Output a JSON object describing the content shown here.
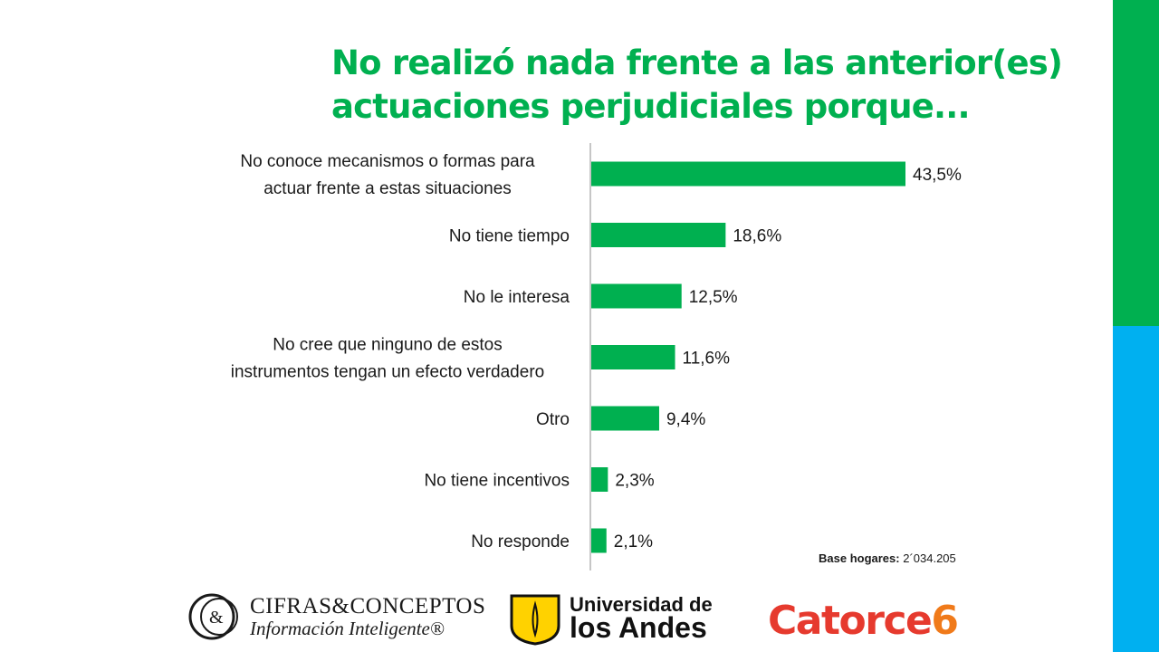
{
  "title_line1": "No realizó nada frente a las anterior(es)",
  "title_line2": "actuaciones perjudiciales porque...",
  "colors": {
    "title": "#00b050",
    "bar": "#00b050",
    "side_top": "#00b050",
    "side_bottom": "#00b0f0"
  },
  "base_note": {
    "label": "Base hogares:",
    "value": "2´034.205"
  },
  "chart_data": {
    "type": "bar",
    "orientation": "horizontal",
    "categories": [
      [
        "No conoce mecanismos o formas para",
        "actuar frente a estas situaciones"
      ],
      [
        "No tiene tiempo"
      ],
      [
        "No le interesa"
      ],
      [
        "No cree que ninguno de estos",
        "instrumentos tengan un efecto verdadero"
      ],
      [
        "Otro"
      ],
      [
        "No tiene incentivos"
      ],
      [
        "No responde"
      ]
    ],
    "values": [
      43.5,
      18.6,
      12.5,
      11.6,
      9.4,
      2.3,
      2.1
    ],
    "value_labels": [
      "43,5%",
      "18,6%",
      "12,5%",
      "11,6%",
      "9,4%",
      "2,3%",
      "2,1%"
    ],
    "xlim": [
      0,
      100
    ],
    "grid": false,
    "legend": "none"
  },
  "logos": {
    "cifras": {
      "name_line1": "CIFRAS&CONCEPTOS",
      "name_line2": "Información Inteligente®",
      "mark": "&"
    },
    "andes": {
      "line1": "Universidad de",
      "line2": "los Andes"
    },
    "catorce": {
      "word": "Catorce",
      "digit": "6"
    }
  }
}
